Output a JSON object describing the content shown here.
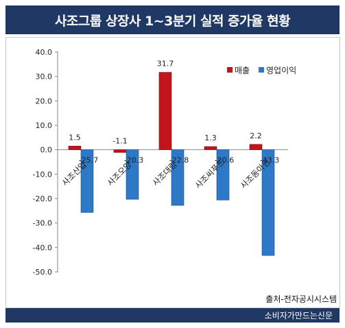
{
  "header": {
    "title": "사조그룹 상장사 1~3분기 실적 증가율 현황"
  },
  "source": "출처-전자공시시스템",
  "footer": "소비자가만드는신문",
  "colors": {
    "title_bg": "#1f3864",
    "sales": "#c0151b",
    "operating": "#2e78c8"
  },
  "chart_data": {
    "type": "bar",
    "title": "사조그룹 상장사 1~3분기 실적 증가율 현황",
    "categories": [
      "사조산업",
      "사조오양",
      "사조대림",
      "사조씨푸드",
      "사조동아원"
    ],
    "series": [
      {
        "name": "매출",
        "values": [
          1.5,
          -1.1,
          31.7,
          1.3,
          2.2
        ]
      },
      {
        "name": "영업이익",
        "values": [
          -25.7,
          -20.3,
          -22.8,
          -20.6,
          -43.3
        ]
      }
    ],
    "y_ticks": [
      "40.0",
      "30.0",
      "20.0",
      "10.0",
      "0.0",
      "-10.0",
      "-20.0",
      "-30.0",
      "-40.0",
      "-50.0"
    ],
    "ylim": [
      -50,
      40
    ],
    "legend_position": "top-right",
    "grid": false
  }
}
